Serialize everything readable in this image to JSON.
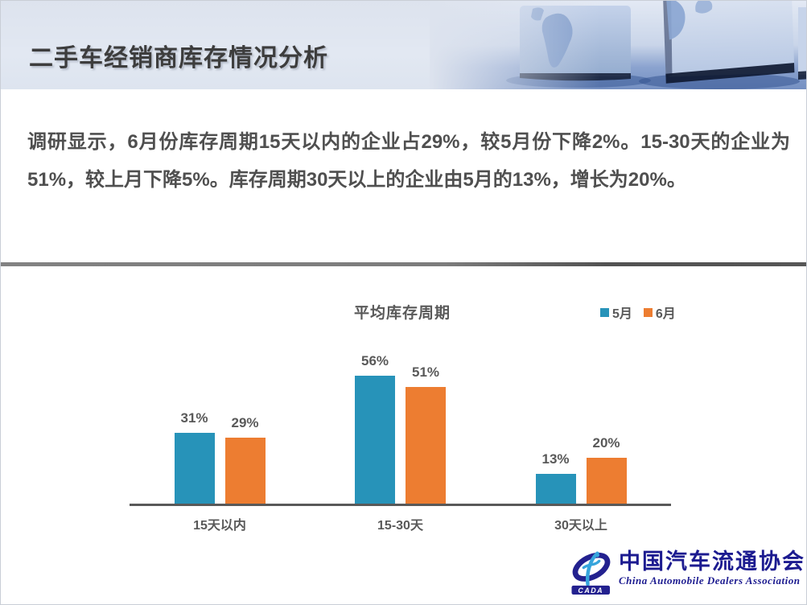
{
  "slide": {
    "title": "二手车经销商库存情况分析",
    "body_text": "调研显示，6月份库存周期15天以内的企业占29%，较5月份下降2%。15-30天的企业为51%，较上月下降5%。库存周期30天以上的企业由5月的13%，增长为20%。"
  },
  "chart_data": {
    "type": "bar",
    "title": "平均库存周期",
    "categories": [
      "15天以内",
      "15-30天",
      "30天以上"
    ],
    "series": [
      {
        "name": "5月",
        "color": "#2793B9",
        "values": [
          31,
          56,
          13
        ]
      },
      {
        "name": "6月",
        "color": "#ED7D31",
        "values": [
          29,
          51,
          20
        ]
      }
    ],
    "value_suffix": "%",
    "ylim": [
      0,
      60
    ],
    "gridlines": false,
    "data_labels": true,
    "legend_position": "top-right",
    "xlabel": "",
    "ylabel": ""
  },
  "logo": {
    "acronym": "CADA",
    "name_cn": "中国汽车流通协会",
    "name_en": "China Automobile Dealers Association"
  },
  "colors": {
    "series_may_blue": "#2793B9",
    "series_june_orange": "#ED7D31",
    "header_light_blue": "#DDE3EE",
    "divider_gray": "#6E6E6E",
    "text_title": "#3D3D3D",
    "text_body": "#4F4F4F",
    "text_chart": "#595959",
    "logo_navy": "#1C1B90",
    "logo_light_blue": "#36A5DC"
  }
}
